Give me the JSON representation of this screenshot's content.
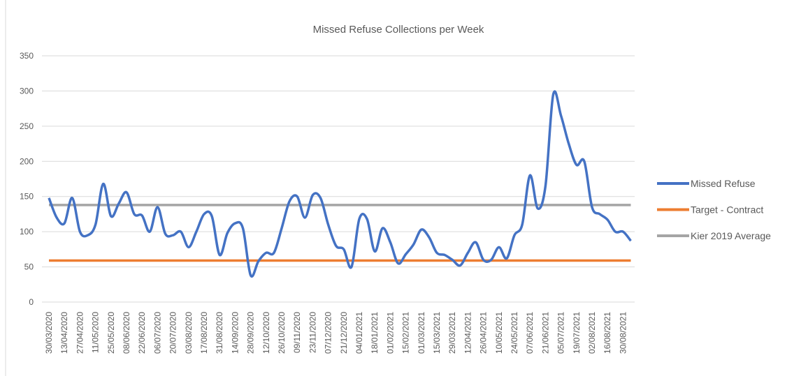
{
  "chart_data": {
    "type": "line",
    "title": "Missed Refuse Collections per Week",
    "categories": [
      "30/03/2020",
      null,
      "13/04/2020",
      null,
      "27/04/2020",
      null,
      "11/05/2020",
      null,
      "25/05/2020",
      null,
      "08/06/2020",
      null,
      "22/06/2020",
      null,
      "06/07/2020",
      null,
      "20/07/2020",
      null,
      "03/08/2020",
      null,
      "17/08/2020",
      null,
      "31/08/2020",
      null,
      "14/09/2020",
      null,
      "28/09/2020",
      null,
      "12/10/2020",
      null,
      "26/10/2020",
      null,
      "09/11/2020",
      null,
      "23/11/2020",
      null,
      "07/12/2020",
      null,
      "21/12/2020",
      null,
      "04/01/2021",
      null,
      "18/01/2021",
      null,
      "01/02/2021",
      null,
      "15/02/2021",
      null,
      "01/03/2021",
      null,
      "15/03/2021",
      null,
      "29/03/2021",
      null,
      "12/04/2021",
      null,
      "26/04/2021",
      null,
      "10/05/2021",
      null,
      "24/05/2021",
      null,
      "07/06/2021",
      null,
      "21/06/2021",
      null,
      "05/07/2021",
      null,
      "19/07/2021",
      null,
      "02/08/2021",
      null,
      "16/08/2021",
      null,
      "30/08/2021",
      null
    ],
    "series": [
      {
        "name": "Missed Refuse",
        "color": "#4472c4",
        "values": [
          148,
          120,
          112,
          148,
          100,
          95,
          110,
          168,
          122,
          140,
          156,
          125,
          123,
          100,
          135,
          97,
          95,
          100,
          78,
          100,
          125,
          122,
          67,
          98,
          112,
          105,
          38,
          58,
          70,
          70,
          105,
          143,
          150,
          120,
          152,
          148,
          110,
          80,
          75,
          50,
          118,
          118,
          72,
          105,
          85,
          55,
          68,
          82,
          103,
          92,
          70,
          67,
          60,
          52,
          70,
          85,
          60,
          60,
          78,
          62,
          95,
          110,
          180,
          133,
          165,
          295,
          265,
          225,
          195,
          200,
          135,
          125,
          117,
          100,
          100,
          87
        ]
      },
      {
        "name": "Target - Contract",
        "color": "#ed7d31",
        "values": [
          59,
          59,
          59,
          59,
          59,
          59,
          59,
          59,
          59,
          59,
          59,
          59,
          59,
          59,
          59,
          59,
          59,
          59,
          59,
          59,
          59,
          59,
          59,
          59,
          59,
          59,
          59,
          59,
          59,
          59,
          59,
          59,
          59,
          59,
          59,
          59,
          59,
          59,
          59,
          59,
          59,
          59,
          59,
          59,
          59,
          59,
          59,
          59,
          59,
          59,
          59,
          59,
          59,
          59,
          59,
          59,
          59,
          59,
          59,
          59,
          59,
          59,
          59,
          59,
          59,
          59,
          59,
          59,
          59,
          59,
          59,
          59,
          59,
          59,
          59,
          59
        ]
      },
      {
        "name": "Kier 2019 Average",
        "color": "#a5a5a5",
        "values": [
          138,
          138,
          138,
          138,
          138,
          138,
          138,
          138,
          138,
          138,
          138,
          138,
          138,
          138,
          138,
          138,
          138,
          138,
          138,
          138,
          138,
          138,
          138,
          138,
          138,
          138,
          138,
          138,
          138,
          138,
          138,
          138,
          138,
          138,
          138,
          138,
          138,
          138,
          138,
          138,
          138,
          138,
          138,
          138,
          138,
          138,
          138,
          138,
          138,
          138,
          138,
          138,
          138,
          138,
          138,
          138,
          138,
          138,
          138,
          138,
          138,
          138,
          138,
          138,
          138,
          138,
          138,
          138,
          138,
          138,
          138,
          138,
          138,
          138,
          138,
          138
        ]
      }
    ],
    "ylim": [
      0,
      350
    ],
    "yticks": [
      0,
      50,
      100,
      150,
      200,
      250,
      300,
      350
    ],
    "grid": true,
    "smooth": true,
    "legend": "right"
  }
}
